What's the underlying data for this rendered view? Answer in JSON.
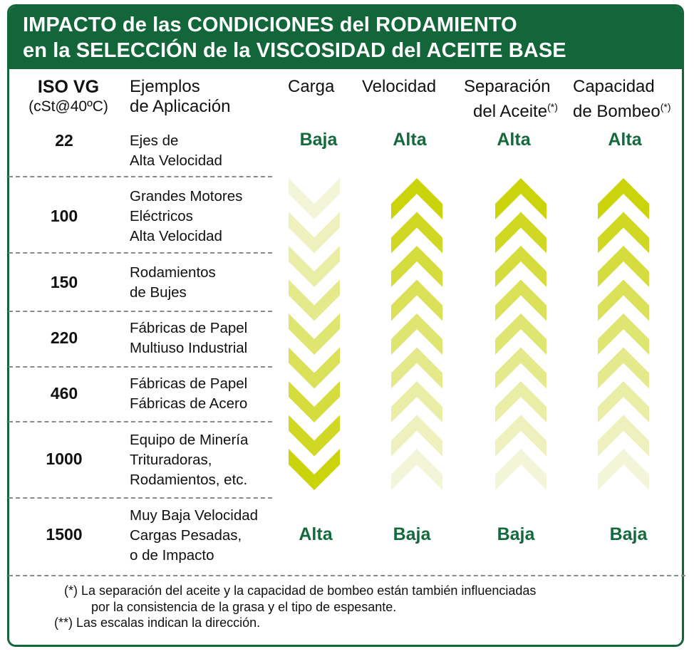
{
  "title": {
    "line1": "IMPACTO de las CONDICIONES del RODAMIENTO",
    "line2": "en la SELECCIÓN de la VISCOSIDAD del ACEITE BASE"
  },
  "headers": {
    "iso_line1": "ISO VG",
    "iso_line2": "(cSt@40ºC)",
    "app_line1": "Ejemplos",
    "app_line2": "de Aplicación",
    "carga": "Carga",
    "velocidad": "Velocidad",
    "separacion_line1": "Separación",
    "separacion_line2": "del Aceite",
    "separacion_mark": "(*)",
    "capacidad_line1": "Capacidad",
    "capacidad_line2": "de Bombeo",
    "capacidad_mark": "(*)"
  },
  "rows": [
    {
      "vg": "22",
      "app": [
        "Ejes de",
        "Alta Velocidad"
      ]
    },
    {
      "vg": "100",
      "app": [
        "Grandes Motores",
        "Eléctricos",
        "Alta Velocidad"
      ]
    },
    {
      "vg": "150",
      "app": [
        "Rodamientos",
        "de Bujes"
      ]
    },
    {
      "vg": "220",
      "app": [
        "Fábricas de Papel",
        "Multiuso Industrial"
      ]
    },
    {
      "vg": "460",
      "app": [
        "Fábricas de Papel",
        "Fábricas de Acero"
      ]
    },
    {
      "vg": "1000",
      "app": [
        "Equipo de Minería",
        "Trituradoras,",
        "Rodamientos, etc."
      ]
    },
    {
      "vg": "1500",
      "app": [
        "Muy Baja Velocidad",
        "Cargas Pesadas,",
        "o de Impacto"
      ]
    }
  ],
  "levels_top": {
    "carga": "Baja",
    "velocidad": "Alta",
    "separacion": "Alta",
    "capacidad": "Alta"
  },
  "levels_bottom": {
    "carga": "Alta",
    "velocidad": "Baja",
    "separacion": "Baja",
    "capacidad": "Baja"
  },
  "scales": [
    {
      "column": "carga",
      "direction": "down"
    },
    {
      "column": "velocidad",
      "direction": "up"
    },
    {
      "column": "separacion",
      "direction": "up"
    },
    {
      "column": "capacidad",
      "direction": "up"
    }
  ],
  "colors": {
    "brand_green": "#13663a",
    "level_text": "#146a3c",
    "chevron_strong": "#cbd40a",
    "chevron_light": "#f3f5d8"
  },
  "notes": {
    "n1_line1": "(*) La separación del aceite y la capacidad de bombeo están también influenciadas",
    "n1_line2": "por la consistencia de la grasa y el tipo de espesante.",
    "n2": "(**) Las escalas indican la dirección."
  }
}
